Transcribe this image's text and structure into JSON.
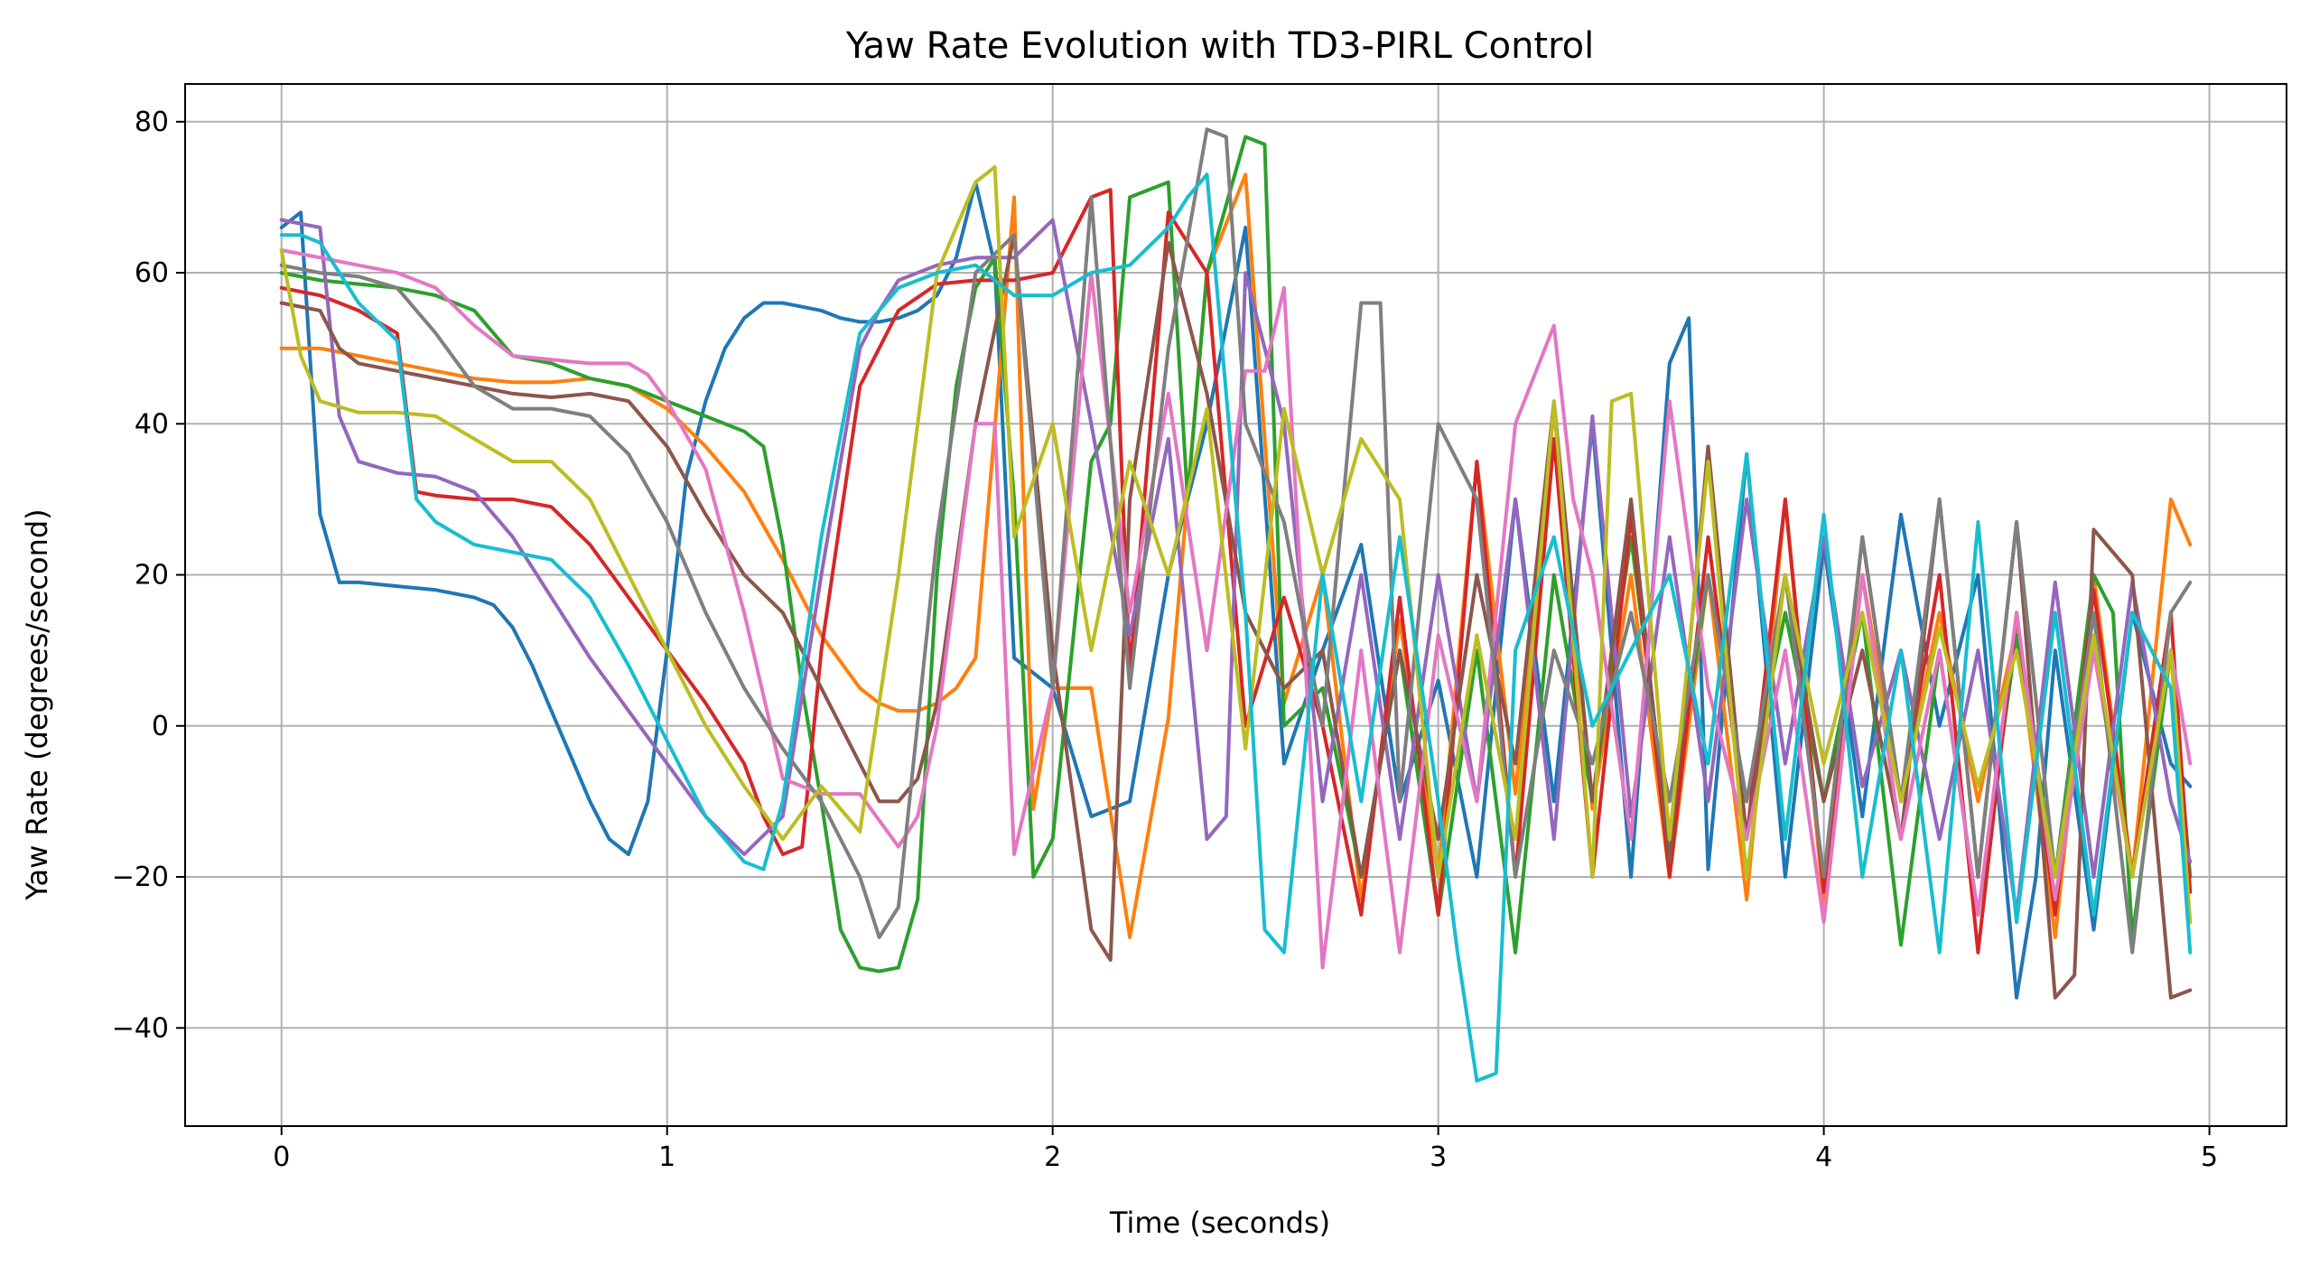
{
  "chart_data": {
    "type": "line",
    "title": "Yaw Rate Evolution with TD3-PIRL Control",
    "xlabel": "Time (seconds)",
    "ylabel": "Yaw Rate (degrees/second)",
    "xlim": [
      -0.25,
      5.2
    ],
    "ylim": [
      -53,
      85
    ],
    "xticks": [
      0,
      1,
      2,
      3,
      4,
      5
    ],
    "yticks": [
      -40,
      -20,
      0,
      20,
      40,
      60,
      80
    ],
    "xtick_labels": [
      "0",
      "1",
      "2",
      "3",
      "4",
      "5"
    ],
    "ytick_labels": [
      "−40",
      "−20",
      "0",
      "20",
      "40",
      "60",
      "80"
    ],
    "grid": true,
    "legend": "none",
    "colors": [
      "#1f77b4",
      "#ff7f0e",
      "#2ca02c",
      "#d62728",
      "#9467bd",
      "#8c564b",
      "#e377c2",
      "#7f7f7f",
      "#bcbd22",
      "#17becf"
    ],
    "series": [
      {
        "color": "#1f77b4",
        "x": [
          0,
          0.05,
          0.1,
          0.15,
          0.2,
          0.3,
          0.4,
          0.5,
          0.55,
          0.6,
          0.65,
          0.7,
          0.75,
          0.8,
          0.85,
          0.9,
          0.95,
          1.0,
          1.05,
          1.1,
          1.15,
          1.2,
          1.25,
          1.3,
          1.35,
          1.4,
          1.45,
          1.5,
          1.55,
          1.6,
          1.65,
          1.7,
          1.75,
          1.8,
          1.85,
          1.9,
          2.0,
          2.1,
          2.2,
          2.3,
          2.4,
          2.5,
          2.6,
          2.7,
          2.8,
          2.9,
          3.0,
          3.1,
          3.2,
          3.3,
          3.4,
          3.5,
          3.6,
          3.65,
          3.7,
          3.8,
          3.9,
          4.0,
          4.1,
          4.2,
          4.3,
          4.4,
          4.5,
          4.55,
          4.6,
          4.7,
          4.8,
          4.9,
          4.95
        ],
        "y": [
          66,
          68,
          28,
          19,
          19,
          18.5,
          18,
          17,
          16,
          13,
          8,
          2,
          -4,
          -10,
          -15,
          -17,
          -10,
          10,
          33,
          43,
          50,
          54,
          56,
          56,
          55.5,
          55,
          54,
          53.5,
          53.5,
          54,
          55,
          57,
          62,
          72,
          61,
          9,
          5,
          -12,
          -10,
          20,
          40,
          66,
          -5,
          10,
          24,
          -10,
          6,
          -20,
          30,
          -10,
          40,
          -20,
          48,
          54,
          -19,
          36,
          -20,
          24,
          -12,
          28,
          0,
          20,
          -36,
          -20,
          10,
          -27,
          15,
          -5,
          -8
        ]
      },
      {
        "color": "#ff7f0e",
        "x": [
          0,
          0.1,
          0.2,
          0.3,
          0.4,
          0.5,
          0.6,
          0.7,
          0.8,
          0.9,
          1.0,
          1.1,
          1.2,
          1.3,
          1.4,
          1.5,
          1.55,
          1.6,
          1.65,
          1.7,
          1.75,
          1.8,
          1.9,
          1.95,
          2.0,
          2.1,
          2.2,
          2.3,
          2.4,
          2.5,
          2.6,
          2.7,
          2.8,
          2.9,
          3.0,
          3.1,
          3.2,
          3.3,
          3.4,
          3.5,
          3.6,
          3.7,
          3.8,
          3.9,
          4.0,
          4.1,
          4.2,
          4.3,
          4.4,
          4.5,
          4.6,
          4.7,
          4.8,
          4.9,
          4.95
        ],
        "y": [
          50,
          50,
          49,
          48,
          47,
          46,
          45.5,
          45.5,
          46,
          45,
          42,
          37,
          31,
          22,
          12,
          5,
          3,
          2,
          2,
          3,
          5,
          9,
          70,
          -11,
          5,
          5,
          -28,
          1,
          60,
          73,
          3,
          20,
          -23,
          14,
          -20,
          35,
          -9,
          42,
          -11,
          20,
          -20,
          20,
          -23,
          30,
          -24,
          20,
          -10,
          15,
          -10,
          13,
          -28,
          20,
          -20,
          30,
          24
        ]
      },
      {
        "color": "#2ca02c",
        "x": [
          0,
          0.1,
          0.2,
          0.3,
          0.4,
          0.5,
          0.6,
          0.7,
          0.8,
          0.9,
          1.0,
          1.1,
          1.2,
          1.25,
          1.3,
          1.35,
          1.4,
          1.45,
          1.5,
          1.55,
          1.6,
          1.65,
          1.7,
          1.75,
          1.8,
          1.85,
          1.9,
          1.95,
          2.0,
          2.1,
          2.15,
          2.2,
          2.3,
          2.35,
          2.4,
          2.5,
          2.55,
          2.6,
          2.7,
          2.8,
          2.9,
          3.0,
          3.1,
          3.2,
          3.3,
          3.4,
          3.5,
          3.6,
          3.7,
          3.8,
          3.9,
          4.0,
          4.1,
          4.2,
          4.3,
          4.4,
          4.5,
          4.6,
          4.7,
          4.75,
          4.8,
          4.9,
          4.95
        ],
        "y": [
          60,
          59,
          58.5,
          58,
          57,
          55,
          49,
          48,
          46,
          45,
          43,
          41,
          39,
          37,
          24,
          5,
          -10,
          -27,
          -32,
          -32.5,
          -32,
          -23,
          20,
          45,
          58,
          62,
          30,
          -20,
          -15,
          35,
          40,
          70,
          72,
          30,
          60,
          78,
          77,
          0,
          5,
          -20,
          10,
          -25,
          10,
          -30,
          20,
          -10,
          25,
          -15,
          20,
          -10,
          15,
          -10,
          15,
          -29,
          10,
          -25,
          12,
          -20,
          20,
          15,
          -28,
          10,
          -20
        ]
      },
      {
        "color": "#d62728",
        "x": [
          0,
          0.1,
          0.2,
          0.3,
          0.35,
          0.4,
          0.5,
          0.6,
          0.7,
          0.8,
          0.9,
          1.0,
          1.1,
          1.2,
          1.25,
          1.3,
          1.35,
          1.4,
          1.5,
          1.6,
          1.7,
          1.8,
          1.9,
          2.0,
          2.1,
          2.15,
          2.2,
          2.3,
          2.4,
          2.5,
          2.6,
          2.7,
          2.8,
          2.9,
          3.0,
          3.1,
          3.2,
          3.3,
          3.4,
          3.5,
          3.6,
          3.7,
          3.8,
          3.9,
          4.0,
          4.1,
          4.2,
          4.3,
          4.4,
          4.5,
          4.6,
          4.7,
          4.8,
          4.9,
          4.95
        ],
        "y": [
          58,
          57,
          55,
          52,
          31,
          30.5,
          30,
          30,
          29,
          24,
          17,
          10,
          3,
          -5,
          -12,
          -17,
          -16,
          10,
          45,
          55,
          58.5,
          59,
          59,
          60,
          70,
          71,
          7,
          68,
          60,
          0,
          17,
          0,
          -25,
          17,
          -25,
          35,
          -20,
          38,
          -20,
          28,
          -20,
          25,
          -15,
          30,
          -22,
          25,
          -10,
          20,
          -30,
          15,
          -25,
          18,
          -20,
          15,
          -22
        ]
      },
      {
        "color": "#9467bd",
        "x": [
          0,
          0.1,
          0.15,
          0.2,
          0.3,
          0.4,
          0.5,
          0.6,
          0.7,
          0.8,
          0.9,
          1.0,
          1.1,
          1.2,
          1.3,
          1.4,
          1.5,
          1.55,
          1.6,
          1.7,
          1.8,
          1.9,
          2.0,
          2.1,
          2.2,
          2.3,
          2.4,
          2.45,
          2.5,
          2.6,
          2.7,
          2.8,
          2.9,
          3.0,
          3.1,
          3.2,
          3.3,
          3.4,
          3.5,
          3.6,
          3.7,
          3.8,
          3.9,
          4.0,
          4.1,
          4.2,
          4.3,
          4.4,
          4.5,
          4.6,
          4.7,
          4.8,
          4.9,
          4.95
        ],
        "y": [
          67,
          66,
          41,
          35,
          33.5,
          33,
          31,
          25,
          17,
          9,
          2,
          -5,
          -12,
          -17,
          -12,
          20,
          50,
          55,
          59,
          61,
          62,
          62,
          67,
          40,
          12,
          38,
          -15,
          -12,
          60,
          40,
          -10,
          20,
          -15,
          20,
          -10,
          30,
          -15,
          41,
          -12,
          25,
          -10,
          30,
          -5,
          25,
          -8,
          10,
          -15,
          10,
          -25,
          19,
          -20,
          19,
          -10,
          -18
        ]
      },
      {
        "color": "#8c564b",
        "x": [
          0,
          0.1,
          0.15,
          0.2,
          0.3,
          0.4,
          0.5,
          0.6,
          0.7,
          0.8,
          0.9,
          1.0,
          1.1,
          1.2,
          1.3,
          1.4,
          1.5,
          1.55,
          1.6,
          1.65,
          1.7,
          1.8,
          1.9,
          2.0,
          2.1,
          2.15,
          2.2,
          2.3,
          2.4,
          2.5,
          2.6,
          2.7,
          2.8,
          2.9,
          3.0,
          3.1,
          3.2,
          3.3,
          3.4,
          3.5,
          3.6,
          3.7,
          3.8,
          3.9,
          4.0,
          4.1,
          4.2,
          4.3,
          4.4,
          4.5,
          4.6,
          4.65,
          4.7,
          4.8,
          4.9,
          4.95
        ],
        "y": [
          56,
          55,
          50,
          48,
          47,
          46,
          45,
          44,
          43.5,
          44,
          43,
          37,
          28,
          20,
          15,
          5,
          -5,
          -10,
          -10,
          -7,
          3,
          40,
          65,
          10,
          -27,
          -31,
          30,
          64,
          44,
          15,
          5,
          10,
          -20,
          10,
          -15,
          20,
          -5,
          43,
          -10,
          30,
          -18,
          37,
          -15,
          20,
          -10,
          10,
          -15,
          30,
          -20,
          27,
          -36,
          -33,
          26,
          20,
          -36,
          -35
        ]
      },
      {
        "color": "#e377c2",
        "x": [
          0,
          0.1,
          0.2,
          0.3,
          0.4,
          0.5,
          0.6,
          0.7,
          0.8,
          0.9,
          0.95,
          1.0,
          1.1,
          1.2,
          1.3,
          1.4,
          1.5,
          1.6,
          1.65,
          1.7,
          1.8,
          1.85,
          1.9,
          2.0,
          2.1,
          2.2,
          2.3,
          2.4,
          2.5,
          2.55,
          2.6,
          2.7,
          2.8,
          2.9,
          3.0,
          3.1,
          3.2,
          3.3,
          3.35,
          3.4,
          3.5,
          3.6,
          3.7,
          3.8,
          3.9,
          4.0,
          4.1,
          4.2,
          4.3,
          4.4,
          4.5,
          4.6,
          4.7,
          4.8,
          4.9,
          4.95
        ],
        "y": [
          63,
          62,
          61,
          60,
          58,
          53,
          49,
          48.5,
          48,
          48,
          46.5,
          43,
          34,
          15,
          -7,
          -9,
          -9,
          -16,
          -12,
          0,
          40,
          40,
          -17,
          5,
          60,
          15,
          44,
          10,
          47,
          47,
          58,
          -32,
          10,
          -30,
          12,
          -10,
          40,
          53,
          30,
          20,
          -15,
          43,
          5,
          -15,
          10,
          -26,
          20,
          -15,
          10,
          -25,
          15,
          -23,
          10,
          -20,
          10,
          -5
        ]
      },
      {
        "color": "#7f7f7f",
        "x": [
          0,
          0.1,
          0.2,
          0.3,
          0.4,
          0.5,
          0.6,
          0.7,
          0.8,
          0.9,
          1.0,
          1.1,
          1.2,
          1.3,
          1.4,
          1.5,
          1.55,
          1.6,
          1.7,
          1.8,
          1.9,
          2.0,
          2.1,
          2.2,
          2.3,
          2.4,
          2.45,
          2.5,
          2.6,
          2.7,
          2.8,
          2.85,
          2.9,
          3.0,
          3.1,
          3.2,
          3.3,
          3.4,
          3.5,
          3.6,
          3.7,
          3.8,
          3.9,
          4.0,
          4.1,
          4.2,
          4.3,
          4.4,
          4.5,
          4.6,
          4.7,
          4.8,
          4.9,
          4.95
        ],
        "y": [
          61,
          60,
          59.5,
          58,
          52,
          45,
          42,
          42,
          41,
          36,
          27,
          15,
          5,
          -3,
          -10,
          -20,
          -28,
          -24,
          25,
          60,
          65,
          5,
          70,
          5,
          50,
          79,
          78,
          40,
          27,
          0,
          56,
          56,
          -10,
          40,
          30,
          -20,
          10,
          -5,
          15,
          -10,
          20,
          -10,
          20,
          -20,
          25,
          -10,
          30,
          -20,
          27,
          -20,
          15,
          -30,
          15,
          19
        ]
      },
      {
        "color": "#bcbd22",
        "x": [
          0,
          0.05,
          0.1,
          0.2,
          0.3,
          0.4,
          0.5,
          0.6,
          0.7,
          0.8,
          0.9,
          1.0,
          1.1,
          1.2,
          1.3,
          1.4,
          1.5,
          1.6,
          1.7,
          1.8,
          1.85,
          1.9,
          2.0,
          2.1,
          2.2,
          2.3,
          2.4,
          2.5,
          2.6,
          2.7,
          2.8,
          2.9,
          3.0,
          3.1,
          3.2,
          3.3,
          3.4,
          3.45,
          3.5,
          3.6,
          3.7,
          3.8,
          3.9,
          4.0,
          4.1,
          4.2,
          4.3,
          4.4,
          4.5,
          4.6,
          4.7,
          4.8,
          4.9,
          4.95
        ],
        "y": [
          63,
          49,
          43,
          41.5,
          41.5,
          41,
          38,
          35,
          35,
          30,
          20,
          10,
          0,
          -8,
          -15,
          -8,
          -14,
          20,
          60,
          72,
          74,
          25,
          40,
          10,
          35,
          20,
          42,
          -3,
          42,
          20,
          38,
          30,
          -20,
          12,
          -15,
          43,
          -20,
          43,
          44,
          -15,
          35,
          -20,
          20,
          -5,
          15,
          -10,
          13,
          -8,
          10,
          -20,
          12,
          -20,
          10,
          -26
        ]
      },
      {
        "color": "#17becf",
        "x": [
          0,
          0.05,
          0.1,
          0.2,
          0.3,
          0.35,
          0.4,
          0.5,
          0.6,
          0.7,
          0.8,
          0.9,
          1.0,
          1.1,
          1.2,
          1.25,
          1.3,
          1.4,
          1.5,
          1.6,
          1.7,
          1.8,
          1.9,
          2.0,
          2.1,
          2.2,
          2.3,
          2.35,
          2.4,
          2.5,
          2.55,
          2.6,
          2.7,
          2.8,
          2.9,
          3.0,
          3.05,
          3.1,
          3.15,
          3.2,
          3.3,
          3.4,
          3.5,
          3.6,
          3.7,
          3.8,
          3.9,
          4.0,
          4.1,
          4.2,
          4.3,
          4.4,
          4.5,
          4.6,
          4.7,
          4.8,
          4.9,
          4.95
        ],
        "y": [
          65,
          65,
          64,
          56,
          51,
          30,
          27,
          24,
          23,
          22,
          17,
          8,
          -2,
          -12,
          -18,
          -19,
          -10,
          25,
          52,
          58,
          60,
          61,
          57,
          57,
          60,
          61,
          66,
          70,
          73,
          15,
          -27,
          -30,
          20,
          -10,
          25,
          -10,
          -30,
          -47,
          -46,
          10,
          25,
          0,
          10,
          20,
          -5,
          36,
          -15,
          28,
          -20,
          10,
          -30,
          27,
          -26,
          15,
          -25,
          15,
          5,
          -30
        ]
      }
    ]
  }
}
